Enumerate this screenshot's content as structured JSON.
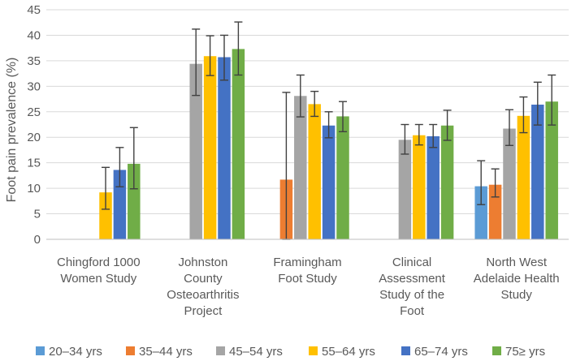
{
  "chart_data": {
    "type": "bar",
    "ylabel": "Foot pain prevalence (%)",
    "ylim": [
      0,
      45
    ],
    "yticks": [
      0,
      5,
      10,
      15,
      20,
      25,
      30,
      35,
      40,
      45
    ],
    "grid": true,
    "legend_position": "bottom",
    "categories": [
      [
        "Chingford 1000",
        "Women Study"
      ],
      [
        "Johnston",
        "County",
        "Osteoarthritis",
        "Project"
      ],
      [
        "Framingham",
        "Foot Study"
      ],
      [
        "Clinical",
        "Assessment",
        "Study of the",
        "Foot"
      ],
      [
        "North West",
        "Adelaide Health",
        "Study"
      ]
    ],
    "series": [
      {
        "name": "20–34 yrs",
        "color": "#5b9bd5",
        "values": [
          null,
          null,
          null,
          null,
          10.4
        ],
        "err_low": [
          null,
          null,
          null,
          null,
          6.8
        ],
        "err_high": [
          null,
          null,
          null,
          null,
          15.4
        ]
      },
      {
        "name": "35–44 yrs",
        "color": "#ed7d31",
        "values": [
          null,
          null,
          11.7,
          null,
          10.7
        ],
        "err_low": [
          null,
          null,
          0,
          null,
          8.3
        ],
        "err_high": [
          null,
          null,
          28.8,
          null,
          13.8
        ]
      },
      {
        "name": "45–54 yrs",
        "color": "#a5a5a5",
        "values": [
          null,
          34.4,
          28.1,
          19.5,
          21.7
        ],
        "err_low": [
          null,
          28.2,
          24.0,
          16.7,
          18.4
        ],
        "err_high": [
          null,
          41.2,
          32.2,
          22.5,
          25.4
        ]
      },
      {
        "name": "55–64 yrs",
        "color": "#ffc000",
        "values": [
          9.2,
          35.9,
          26.5,
          20.4,
          24.2
        ],
        "err_low": [
          5.9,
          32.1,
          24.1,
          18.5,
          20.9
        ],
        "err_high": [
          14.1,
          39.9,
          29.0,
          22.5,
          27.9
        ]
      },
      {
        "name": "65–74 yrs",
        "color": "#4472c4",
        "values": [
          13.6,
          35.7,
          22.3,
          20.2,
          26.4
        ],
        "err_low": [
          10.3,
          31.2,
          19.9,
          18.0,
          22.4
        ],
        "err_high": [
          18.0,
          40.0,
          25.0,
          22.5,
          30.8
        ]
      },
      {
        "name": "75≥ yrs",
        "color": "#70ad47",
        "values": [
          14.8,
          37.3,
          24.1,
          22.3,
          27.0
        ],
        "err_low": [
          9.9,
          32.2,
          21.1,
          19.4,
          22.4
        ],
        "err_high": [
          21.9,
          42.6,
          27.0,
          25.3,
          32.2
        ]
      }
    ]
  }
}
